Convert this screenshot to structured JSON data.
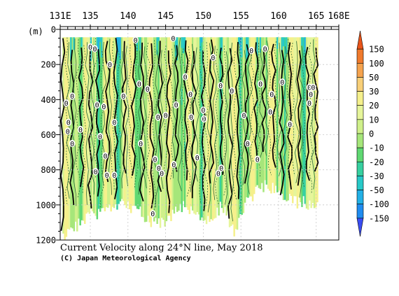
{
  "title": "Current Velocity along 24°N line, May 2018",
  "credit": "(C) Japan Meteorological Agency",
  "chart_data": {
    "type": "heatmap",
    "title": "Current Velocity along 24°N line, May 2018",
    "xlabel": "",
    "ylabel": "(m)",
    "xlim": [
      131,
      168
    ],
    "ylim": [
      0,
      1200
    ],
    "y_inverted": true,
    "x_ticks": [
      {
        "value": 131,
        "label": "131E"
      },
      {
        "value": 135,
        "label": "135"
      },
      {
        "value": 140,
        "label": "140"
      },
      {
        "value": 145,
        "label": "145"
      },
      {
        "value": 150,
        "label": "150"
      },
      {
        "value": 155,
        "label": "155"
      },
      {
        "value": 160,
        "label": "160"
      },
      {
        "value": 165,
        "label": "165"
      },
      {
        "value": 168,
        "label": "168E"
      }
    ],
    "y_ticks": [
      0,
      200,
      400,
      600,
      800,
      1000,
      1200
    ],
    "grid": true,
    "colorbar": {
      "position": "right",
      "levels": [
        150,
        100,
        50,
        30,
        20,
        10,
        0,
        -10,
        -20,
        -30,
        -50,
        -100,
        -150
      ],
      "colors": [
        "#e8541a",
        "#f07a2c",
        "#f5a34e",
        "#f8cf78",
        "#f5f08c",
        "#e6f59a",
        "#cff08a",
        "#a6e67a",
        "#5fd872",
        "#36d0a0",
        "#27c9c8",
        "#22b0e6",
        "#1f8cf0",
        "#3a4df2"
      ]
    },
    "coverage_m": [
      {
        "lon": 131.5,
        "depth": 1190
      },
      {
        "lon": 133.0,
        "depth": 1120
      },
      {
        "lon": 135.0,
        "depth": 1060
      },
      {
        "lon": 137.5,
        "depth": 1010
      },
      {
        "lon": 140.0,
        "depth": 1000
      },
      {
        "lon": 142.5,
        "depth": 1080
      },
      {
        "lon": 144.0,
        "depth": 1110
      },
      {
        "lon": 145.5,
        "depth": 1060
      },
      {
        "lon": 147.0,
        "depth": 1000
      },
      {
        "lon": 149.0,
        "depth": 1070
      },
      {
        "lon": 151.0,
        "depth": 1080
      },
      {
        "lon": 152.5,
        "depth": 1000
      },
      {
        "lon": 154.0,
        "depth": 1150
      },
      {
        "lon": 155.5,
        "depth": 1000
      },
      {
        "lon": 157.0,
        "depth": 920
      },
      {
        "lon": 158.5,
        "depth": 880
      },
      {
        "lon": 160.0,
        "depth": 950
      },
      {
        "lon": 162.0,
        "depth": 980
      },
      {
        "lon": 163.5,
        "depth": 990
      },
      {
        "lon": 165.0,
        "depth": 985
      }
    ],
    "zero_labels": [
      {
        "lon": 131.8,
        "depth": 420
      },
      {
        "lon": 132.1,
        "depth": 530
      },
      {
        "lon": 132.0,
        "depth": 580
      },
      {
        "lon": 132.6,
        "depth": 380
      },
      {
        "lon": 132.6,
        "depth": 650
      },
      {
        "lon": 133.7,
        "depth": 570
      },
      {
        "lon": 135.0,
        "depth": 100
      },
      {
        "lon": 135.6,
        "depth": 110
      },
      {
        "lon": 135.9,
        "depth": 430
      },
      {
        "lon": 136.3,
        "depth": 610
      },
      {
        "lon": 136.8,
        "depth": 440
      },
      {
        "lon": 137.0,
        "depth": 720
      },
      {
        "lon": 135.7,
        "depth": 810
      },
      {
        "lon": 137.2,
        "depth": 830
      },
      {
        "lon": 138.2,
        "depth": 830
      },
      {
        "lon": 137.6,
        "depth": 200
      },
      {
        "lon": 138.2,
        "depth": 530
      },
      {
        "lon": 139.4,
        "depth": 380
      },
      {
        "lon": 141.0,
        "depth": 60
      },
      {
        "lon": 141.5,
        "depth": 310
      },
      {
        "lon": 142.6,
        "depth": 340
      },
      {
        "lon": 141.7,
        "depth": 650
      },
      {
        "lon": 143.6,
        "depth": 740
      },
      {
        "lon": 144.0,
        "depth": 500
      },
      {
        "lon": 144.1,
        "depth": 790
      },
      {
        "lon": 144.5,
        "depth": 820
      },
      {
        "lon": 145.0,
        "depth": 490
      },
      {
        "lon": 146.0,
        "depth": 50
      },
      {
        "lon": 146.4,
        "depth": 430
      },
      {
        "lon": 146.1,
        "depth": 770
      },
      {
        "lon": 147.6,
        "depth": 270
      },
      {
        "lon": 148.3,
        "depth": 370
      },
      {
        "lon": 148.4,
        "depth": 500
      },
      {
        "lon": 149.2,
        "depth": 730
      },
      {
        "lon": 150.0,
        "depth": 460
      },
      {
        "lon": 150.1,
        "depth": 510
      },
      {
        "lon": 151.3,
        "depth": 160
      },
      {
        "lon": 152.3,
        "depth": 320
      },
      {
        "lon": 152.0,
        "depth": 820
      },
      {
        "lon": 152.4,
        "depth": 790
      },
      {
        "lon": 153.8,
        "depth": 350
      },
      {
        "lon": 155.4,
        "depth": 490
      },
      {
        "lon": 155.9,
        "depth": 650
      },
      {
        "lon": 156.4,
        "depth": 120
      },
      {
        "lon": 157.2,
        "depth": 740
      },
      {
        "lon": 157.6,
        "depth": 310
      },
      {
        "lon": 158.2,
        "depth": 110
      },
      {
        "lon": 158.9,
        "depth": 470
      },
      {
        "lon": 159.1,
        "depth": 370
      },
      {
        "lon": 160.5,
        "depth": 300
      },
      {
        "lon": 161.5,
        "depth": 540
      },
      {
        "lon": 164.1,
        "depth": 330
      },
      {
        "lon": 164.6,
        "depth": 330
      },
      {
        "lon": 164.3,
        "depth": 370
      },
      {
        "lon": 164.1,
        "depth": 420
      },
      {
        "lon": 143.3,
        "depth": 1050
      }
    ]
  }
}
